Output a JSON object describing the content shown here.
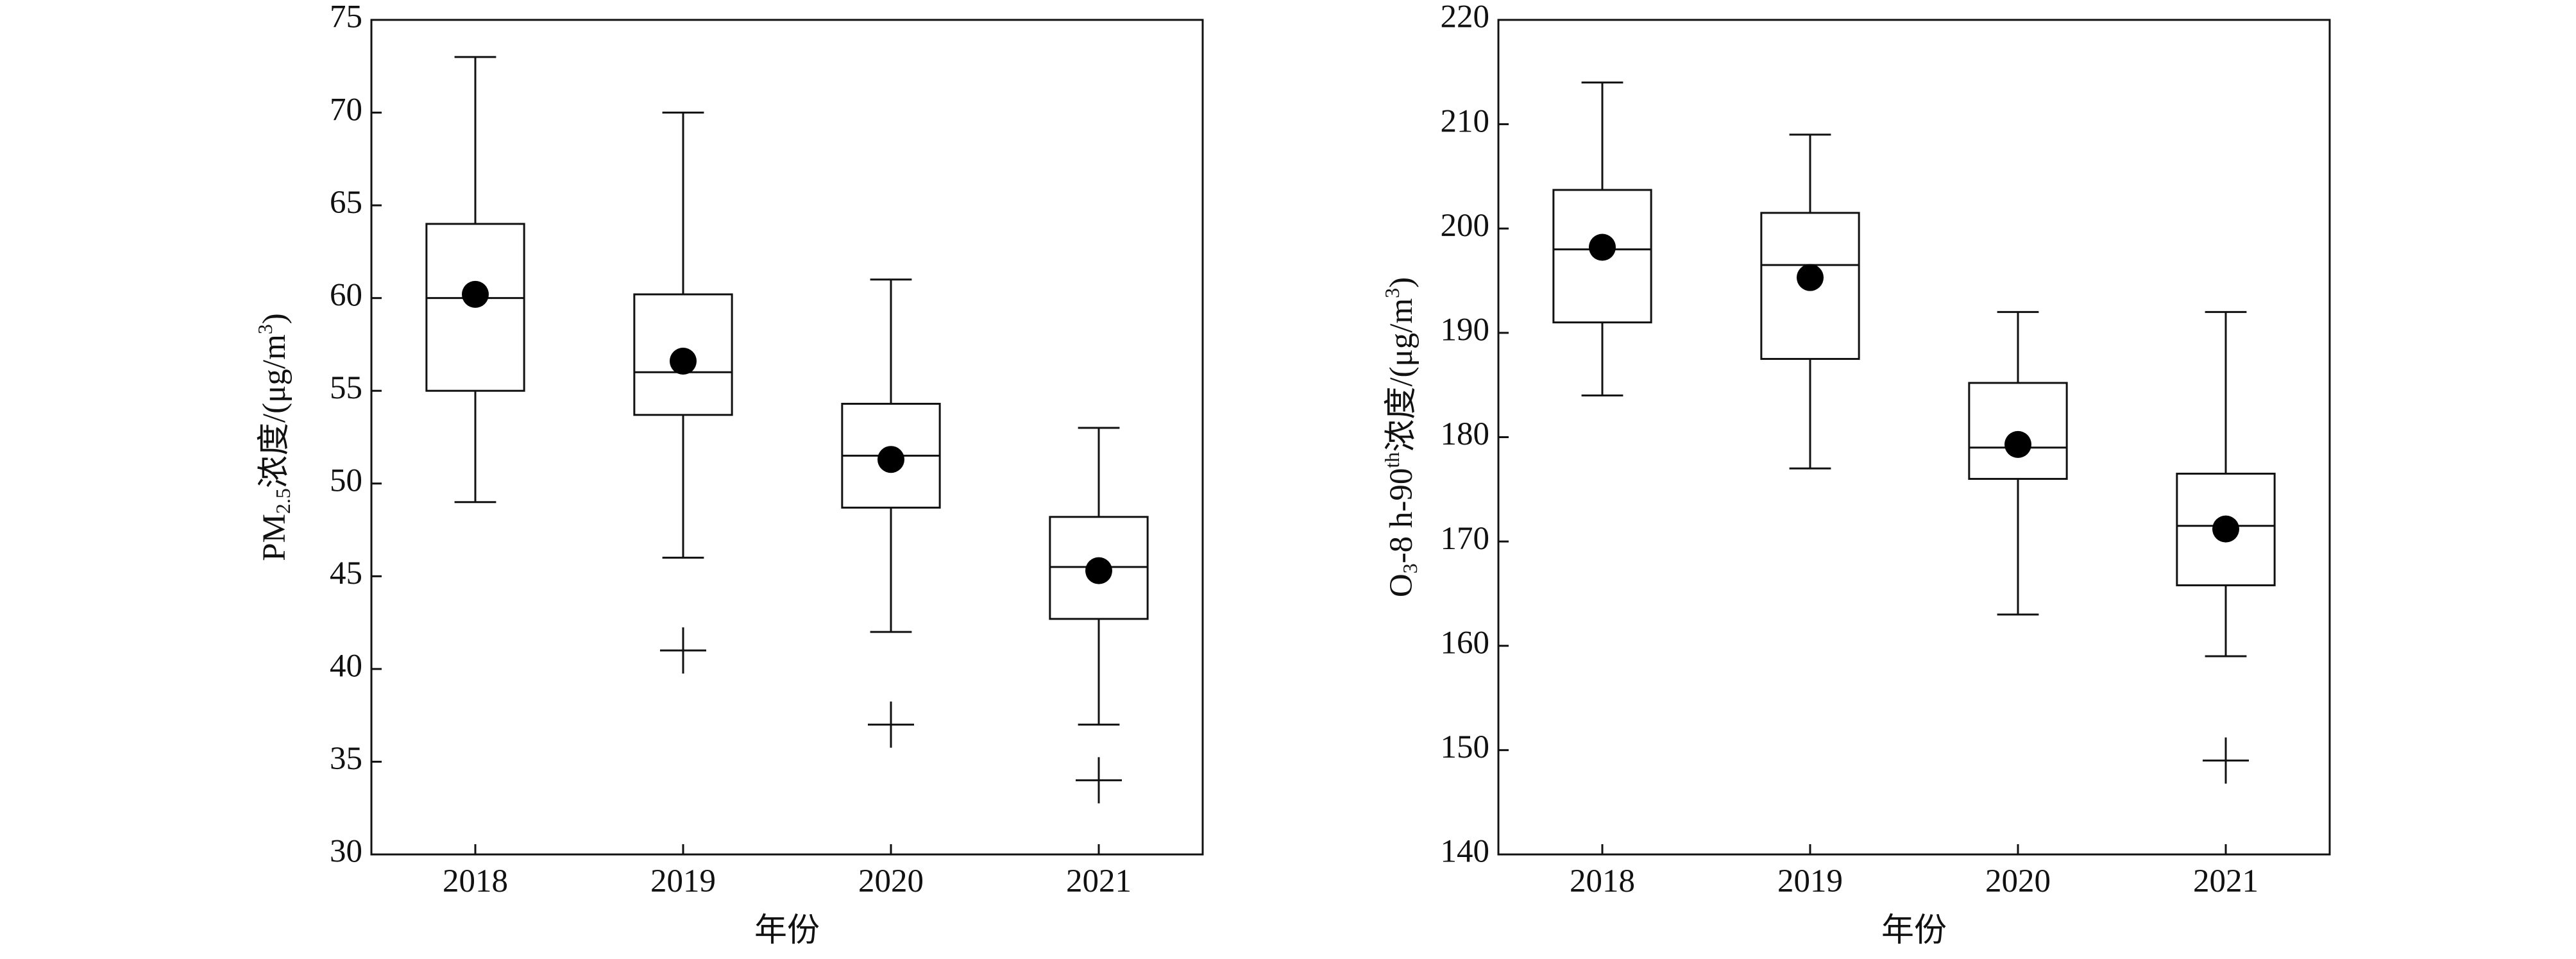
{
  "chart_data": [
    {
      "type": "box",
      "y_label": [
        {
          "text": "PM"
        },
        {
          "text": "2.5",
          "script": "sub"
        },
        {
          "text": "浓度/(μg/m"
        },
        {
          "text": "3",
          "script": "super"
        },
        {
          "text": ")"
        }
      ],
      "x_label": "年份",
      "categories": [
        "2018",
        "2019",
        "2020",
        "2021"
      ],
      "ylim": [
        30,
        75
      ],
      "yticks": [
        30,
        35,
        40,
        45,
        50,
        55,
        60,
        65,
        70,
        75
      ],
      "boxes": [
        {
          "whisker_low": 49,
          "q1": 55,
          "median": 60,
          "q3": 64,
          "whisker_high": 73,
          "mean": 60.2,
          "outliers": []
        },
        {
          "whisker_low": 46,
          "q1": 53.7,
          "median": 56,
          "q3": 60.2,
          "whisker_high": 70,
          "mean": 56.6,
          "outliers": [
            41
          ]
        },
        {
          "whisker_low": 42,
          "q1": 48.7,
          "median": 51.5,
          "q3": 54.3,
          "whisker_high": 61,
          "mean": 51.3,
          "outliers": [
            37
          ]
        },
        {
          "whisker_low": 37,
          "q1": 42.7,
          "median": 45.5,
          "q3": 48.2,
          "whisker_high": 53,
          "mean": 45.3,
          "outliers": [
            34
          ]
        }
      ]
    },
    {
      "type": "box",
      "y_label": [
        {
          "text": "O"
        },
        {
          "text": "3",
          "script": "sub"
        },
        {
          "text": "-8 h-90"
        },
        {
          "text": "th",
          "script": "super"
        },
        {
          "text": "浓度/(μg/m"
        },
        {
          "text": "3",
          "script": "super"
        },
        {
          "text": ")"
        }
      ],
      "x_label": "年份",
      "categories": [
        "2018",
        "2019",
        "2020",
        "2021"
      ],
      "ylim": [
        140,
        220
      ],
      "yticks": [
        140,
        150,
        160,
        170,
        180,
        190,
        200,
        210,
        220
      ],
      "boxes": [
        {
          "whisker_low": 184,
          "q1": 191,
          "median": 198,
          "q3": 203.7,
          "whisker_high": 214,
          "mean": 198.2,
          "outliers": []
        },
        {
          "whisker_low": 177,
          "q1": 187.5,
          "median": 196.5,
          "q3": 201.5,
          "whisker_high": 209,
          "mean": 195.3,
          "outliers": []
        },
        {
          "whisker_low": 163,
          "q1": 176,
          "median": 179,
          "q3": 185.2,
          "whisker_high": 192,
          "mean": 179.3,
          "outliers": []
        },
        {
          "whisker_low": 159,
          "q1": 165.8,
          "median": 171.5,
          "q3": 176.5,
          "whisker_high": 192,
          "mean": 171.2,
          "outliers": [
            149
          ]
        }
      ]
    }
  ]
}
